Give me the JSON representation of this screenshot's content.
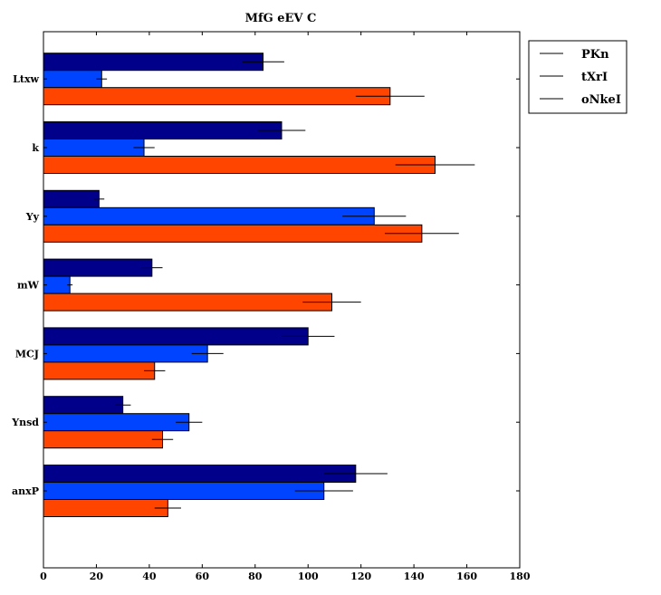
{
  "chart_data": {
    "type": "bar",
    "orientation": "horizontal",
    "title": "MfG eEV C",
    "xlabel": "",
    "ylabel": "",
    "xlim": [
      0,
      180
    ],
    "xticks": [
      0,
      20,
      40,
      60,
      80,
      100,
      120,
      140,
      160,
      180
    ],
    "grid": false,
    "legend_position": "top-right, outside plot",
    "categories": [
      "anxP",
      "Ynsd",
      "MCJ",
      "mW",
      "Yy",
      "k",
      "Ltxw"
    ],
    "series": [
      {
        "name": "PKn",
        "color": "#00008b",
        "values": [
          118,
          30,
          100,
          41,
          21,
          90,
          83
        ],
        "errors": [
          12,
          3,
          10,
          4,
          2,
          9,
          8
        ]
      },
      {
        "name": "tXrI",
        "color": "#0044ff",
        "values": [
          106,
          55,
          62,
          10,
          125,
          38,
          22
        ],
        "errors": [
          11,
          5,
          6,
          1,
          12,
          4,
          2
        ]
      },
      {
        "name": "oNkeI",
        "color": "#ff4500",
        "values": [
          47,
          45,
          42,
          109,
          143,
          148,
          131
        ],
        "errors": [
          5,
          4,
          4,
          11,
          14,
          15,
          13
        ]
      }
    ]
  }
}
